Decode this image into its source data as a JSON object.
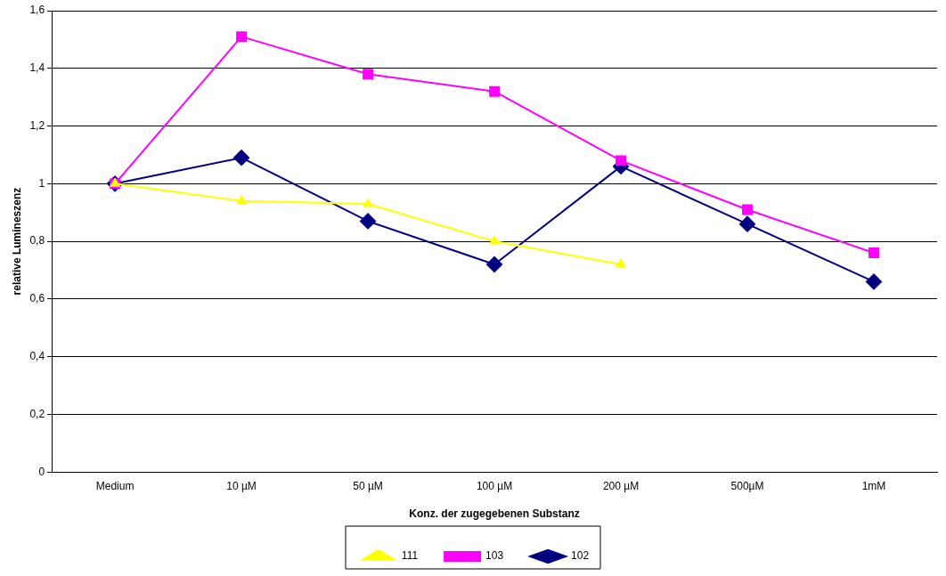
{
  "chart_data": {
    "type": "line",
    "xlabel": "Konz. der zugegebenen Substanz",
    "ylabel": "relative Lumineszenz",
    "categories": [
      "Medium",
      "10 µM",
      "50 µM",
      "100 µM",
      "200 µM",
      "500µM",
      "1mM"
    ],
    "series": [
      {
        "name": "102",
        "color": "#000080",
        "marker": "diamond",
        "values": [
          1.0,
          1.09,
          0.87,
          0.72,
          1.06,
          0.86,
          0.66
        ]
      },
      {
        "name": "103",
        "color": "#ff00ff",
        "marker": "square",
        "values": [
          1.0,
          1.51,
          1.38,
          1.32,
          1.08,
          0.91,
          0.76
        ]
      },
      {
        "name": "111",
        "color": "#ffff00",
        "marker": "triangle",
        "values": [
          1.0,
          0.94,
          0.93,
          0.8,
          0.72,
          null,
          null
        ]
      }
    ],
    "ylim": [
      0,
      1.6
    ],
    "yticks": [
      0,
      {
        "value": 0.2,
        "label": "0,2"
      },
      {
        "value": 0.4,
        "label": "0,4"
      },
      {
        "value": 0.6,
        "label": "0,6"
      },
      {
        "value": 0.8,
        "label": "0,8"
      },
      1,
      {
        "value": 1.2,
        "label": "1,2"
      },
      {
        "value": 1.4,
        "label": "1,4"
      },
      {
        "value": 1.6,
        "label": "1,6"
      }
    ],
    "grid": "y",
    "legend": "bottom",
    "line_style": "solid"
  }
}
